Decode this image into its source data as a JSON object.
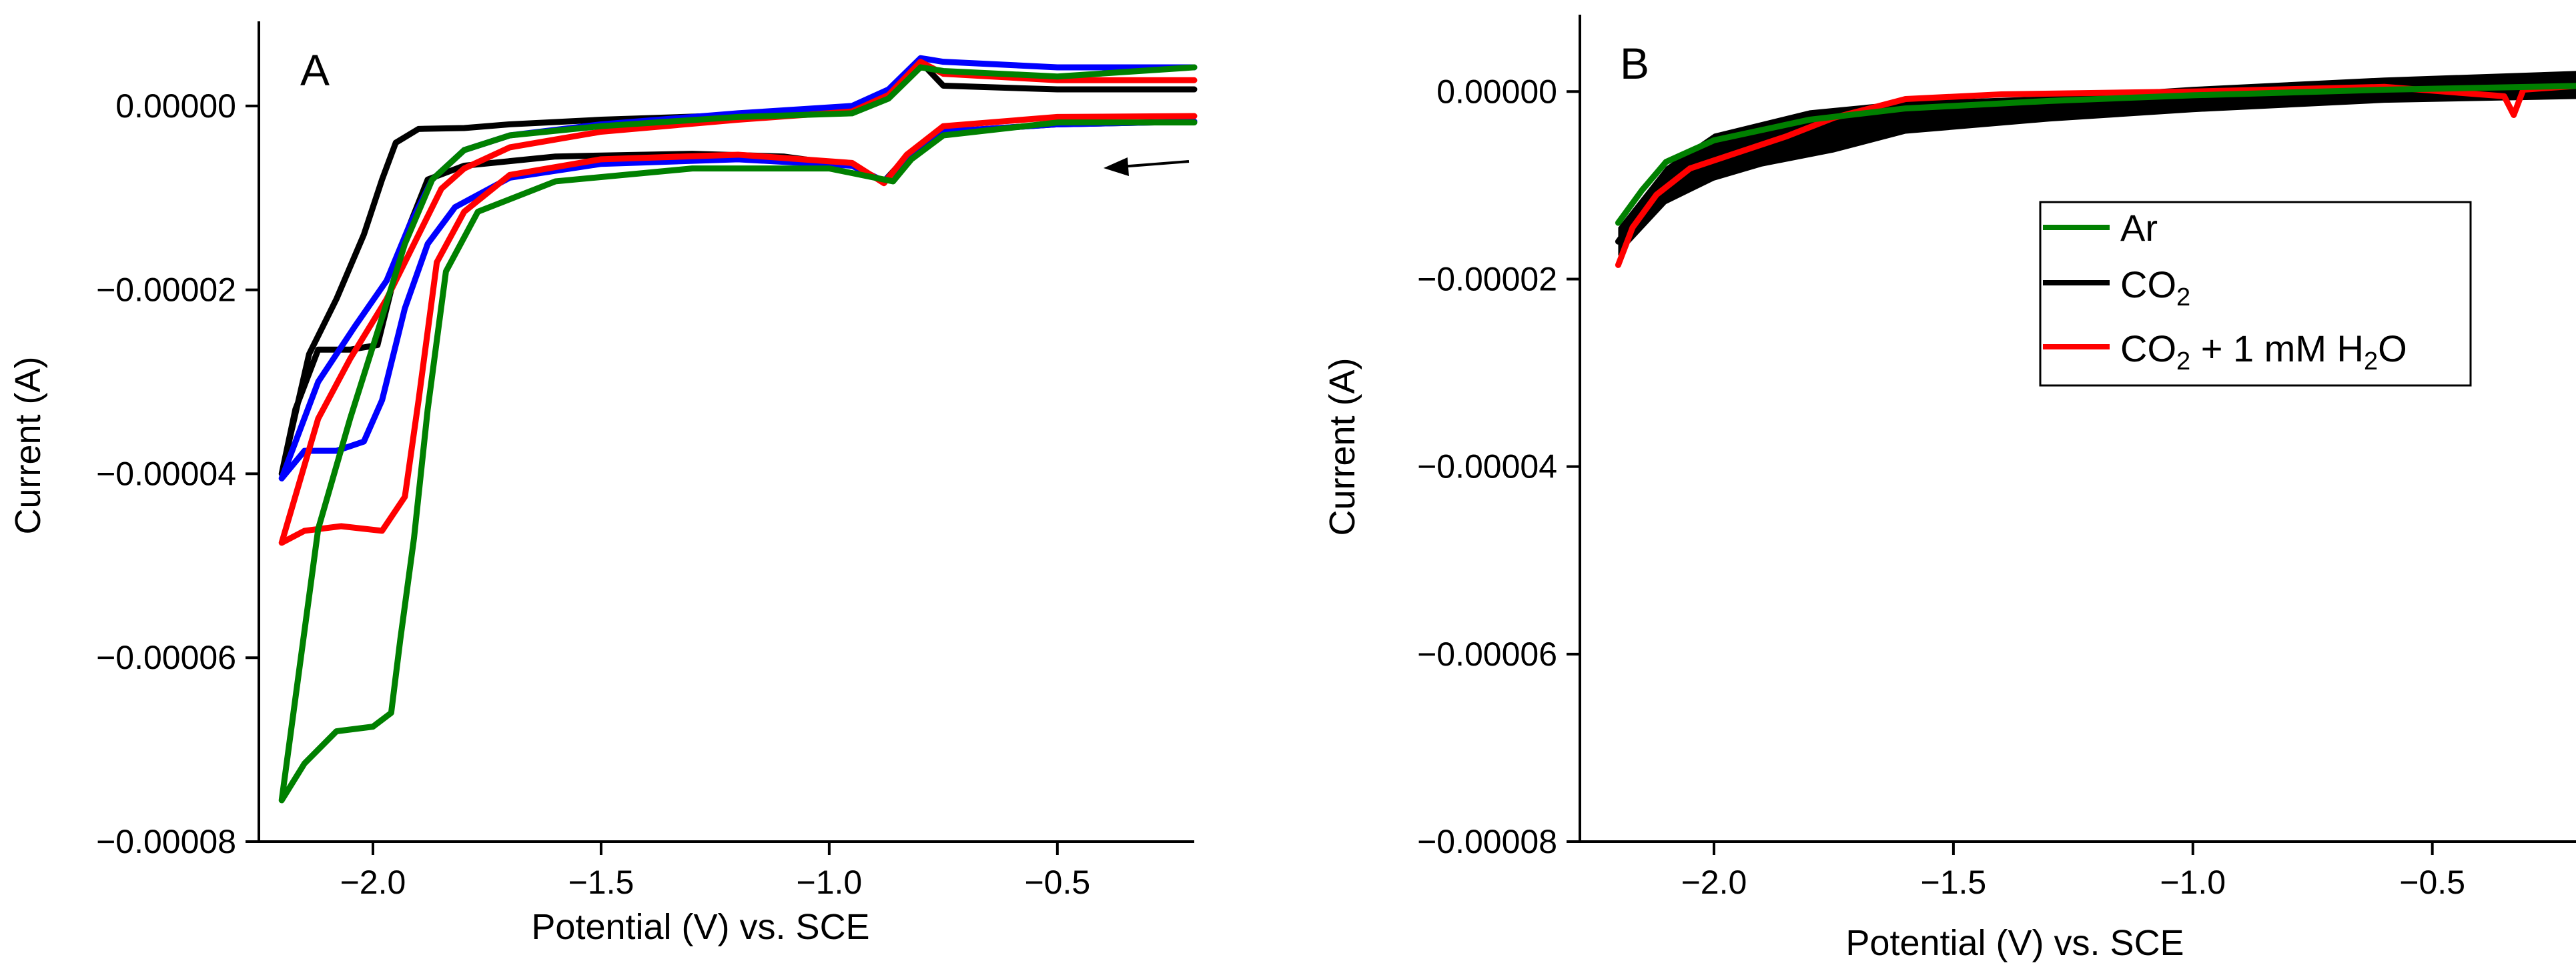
{
  "chart_data": [
    {
      "panel": "A",
      "type": "line",
      "title": "",
      "xlabel": "Potential (V) vs. SCE",
      "ylabel": "Current (A)",
      "xlim": [
        -2.25,
        -0.2
      ],
      "ylim": [
        -8e-05,
        9.2e-06
      ],
      "xticks": [
        -2.0,
        -1.5,
        -1.0,
        -0.5
      ],
      "xtick_labels": [
        "−2.0",
        "−1.5",
        "−1.0",
        "−0.5"
      ],
      "yticks": [
        0.0,
        -2e-05,
        -4e-05,
        -6e-05,
        -8e-05
      ],
      "ytick_labels": [
        "0.00000",
        "−0.00002",
        "−0.00004",
        "−0.00006",
        "−0.00008"
      ],
      "annotation": "scan direction arrow (pointing left, cathodic sweep)",
      "series": [
        {
          "name": "black",
          "color": "#000000",
          "points": [
            [
              -0.2,
              1.8e-06
            ],
            [
              -0.5,
              1.8e-06
            ],
            [
              -0.75,
              2.2e-06
            ],
            [
              -0.8,
              4.8e-06
            ],
            [
              -0.87,
              1.2e-06
            ],
            [
              -0.95,
              -5e-07
            ],
            [
              -1.2,
              -1e-06
            ],
            [
              -1.5,
              -1.5e-06
            ],
            [
              -1.7,
              -2e-06
            ],
            [
              -1.8,
              -2.4e-06
            ],
            [
              -1.9,
              -2.5e-06
            ],
            [
              -1.95,
              -4e-06
            ],
            [
              -1.98,
              -8e-06
            ],
            [
              -2.02,
              -1.4e-05
            ],
            [
              -2.08,
              -2.1e-05
            ],
            [
              -2.14,
              -2.7e-05
            ],
            [
              -2.2,
              -4e-05
            ],
            [
              -2.17,
              -3.3e-05
            ],
            [
              -2.12,
              -2.65e-05
            ],
            [
              -2.05,
              -2.65e-05
            ],
            [
              -1.99,
              -2.6e-05
            ],
            [
              -1.96,
              -2e-05
            ],
            [
              -1.92,
              -1.3e-05
            ],
            [
              -1.88,
              -8e-06
            ],
            [
              -1.8,
              -6.5e-06
            ],
            [
              -1.6,
              -5.5e-06
            ],
            [
              -1.3,
              -5.2e-06
            ],
            [
              -1.1,
              -5.5e-06
            ],
            [
              -0.95,
              -6.5e-06
            ],
            [
              -0.88,
              -8.2e-06
            ],
            [
              -0.83,
              -5.5e-06
            ],
            [
              -0.75,
              -2.8e-06
            ],
            [
              -0.5,
              -2e-06
            ],
            [
              -0.2,
              -1.7e-06
            ]
          ]
        },
        {
          "name": "blue",
          "color": "#0000ff",
          "points": [
            [
              -0.2,
              4.2e-06
            ],
            [
              -0.5,
              4.2e-06
            ],
            [
              -0.75,
              4.8e-06
            ],
            [
              -0.8,
              5.2e-06
            ],
            [
              -0.87,
              1.8e-06
            ],
            [
              -0.95,
              0.0
            ],
            [
              -1.2,
              -8e-07
            ],
            [
              -1.5,
              -2e-06
            ],
            [
              -1.7,
              -3.2e-06
            ],
            [
              -1.8,
              -4.8e-06
            ],
            [
              -1.87,
              -8e-06
            ],
            [
              -1.92,
              -1.3e-05
            ],
            [
              -1.97,
              -1.9e-05
            ],
            [
              -2.04,
              -2.4e-05
            ],
            [
              -2.12,
              -3e-05
            ],
            [
              -2.2,
              -4.05e-05
            ],
            [
              -2.15,
              -3.75e-05
            ],
            [
              -2.08,
              -3.75e-05
            ],
            [
              -2.02,
              -3.65e-05
            ],
            [
              -1.98,
              -3.2e-05
            ],
            [
              -1.93,
              -2.2e-05
            ],
            [
              -1.88,
              -1.5e-05
            ],
            [
              -1.82,
              -1.1e-05
            ],
            [
              -1.7,
              -7.8e-06
            ],
            [
              -1.5,
              -6.3e-06
            ],
            [
              -1.2,
              -5.8e-06
            ],
            [
              -0.95,
              -6.5e-06
            ],
            [
              -0.88,
              -8.2e-06
            ],
            [
              -0.83,
              -5.8e-06
            ],
            [
              -0.75,
              -2.8e-06
            ],
            [
              -0.5,
              -2e-06
            ],
            [
              -0.2,
              -1.7e-06
            ]
          ]
        },
        {
          "name": "red",
          "color": "#ff0000",
          "points": [
            [
              -0.2,
              2.8e-06
            ],
            [
              -0.5,
              2.8e-06
            ],
            [
              -0.75,
              3.5e-06
            ],
            [
              -0.8,
              4.8e-06
            ],
            [
              -0.87,
              1.2e-06
            ],
            [
              -0.95,
              -6e-07
            ],
            [
              -1.2,
              -1.5e-06
            ],
            [
              -1.5,
              -2.8e-06
            ],
            [
              -1.7,
              -4.5e-06
            ],
            [
              -1.8,
              -6.8e-06
            ],
            [
              -1.85,
              -9e-06
            ],
            [
              -1.9,
              -1.4e-05
            ],
            [
              -1.97,
              -2.1e-05
            ],
            [
              -2.05,
              -2.75e-05
            ],
            [
              -2.12,
              -3.4e-05
            ],
            [
              -2.2,
              -4.75e-05
            ],
            [
              -2.15,
              -4.62e-05
            ],
            [
              -2.07,
              -4.57e-05
            ],
            [
              -1.98,
              -4.62e-05
            ],
            [
              -1.93,
              -4.25e-05
            ],
            [
              -1.9,
              -3.2e-05
            ],
            [
              -1.86,
              -1.7e-05
            ],
            [
              -1.8,
              -1.15e-05
            ],
            [
              -1.7,
              -7.5e-06
            ],
            [
              -1.5,
              -5.8e-06
            ],
            [
              -1.2,
              -5.3e-06
            ],
            [
              -0.95,
              -6.2e-06
            ],
            [
              -0.88,
              -8.4e-06
            ],
            [
              -0.83,
              -5.3e-06
            ],
            [
              -0.75,
              -2.2e-06
            ],
            [
              -0.5,
              -1.2e-06
            ],
            [
              -0.2,
              -1.1e-06
            ]
          ]
        },
        {
          "name": "green",
          "color": "#008000",
          "points": [
            [
              -0.2,
              4.2e-06
            ],
            [
              -0.5,
              3.2e-06
            ],
            [
              -0.75,
              3.8e-06
            ],
            [
              -0.8,
              4.2e-06
            ],
            [
              -0.87,
              8e-07
            ],
            [
              -0.95,
              -8e-07
            ],
            [
              -1.2,
              -1.2e-06
            ],
            [
              -1.5,
              -2.2e-06
            ],
            [
              -1.7,
              -3.2e-06
            ],
            [
              -1.8,
              -4.8e-06
            ],
            [
              -1.87,
              -8e-06
            ],
            [
              -1.93,
              -1.5e-05
            ],
            [
              -1.98,
              -2.3e-05
            ],
            [
              -2.05,
              -3.4e-05
            ],
            [
              -2.12,
              -4.6e-05
            ],
            [
              -2.2,
              -7.55e-05
            ],
            [
              -2.15,
              -7.15e-05
            ],
            [
              -2.08,
              -6.8e-05
            ],
            [
              -2.0,
              -6.75e-05
            ],
            [
              -1.96,
              -6.6e-05
            ],
            [
              -1.94,
              -5.8e-05
            ],
            [
              -1.91,
              -4.7e-05
            ],
            [
              -1.88,
              -3.3e-05
            ],
            [
              -1.84,
              -1.8e-05
            ],
            [
              -1.77,
              -1.15e-05
            ],
            [
              -1.6,
              -8.2e-06
            ],
            [
              -1.3,
              -6.8e-06
            ],
            [
              -1.0,
              -6.8e-06
            ],
            [
              -0.9,
              -7.8e-06
            ],
            [
              -0.86,
              -8.2e-06
            ],
            [
              -0.82,
              -5.8e-06
            ],
            [
              -0.75,
              -3.2e-06
            ],
            [
              -0.5,
              -1.8e-06
            ],
            [
              -0.2,
              -1.8e-06
            ]
          ]
        }
      ]
    },
    {
      "panel": "B",
      "type": "line",
      "title": "",
      "xlabel": "Potential (V) vs. SCE",
      "ylabel": "Current (A)",
      "xlim": [
        -2.28,
        -0.2
      ],
      "ylim": [
        -8e-05,
        8.2e-06
      ],
      "xticks": [
        -2.0,
        -1.5,
        -1.0,
        -0.5
      ],
      "xtick_labels": [
        "−2.0",
        "−1.5",
        "−1.0",
        "−0.5"
      ],
      "yticks": [
        0.0,
        -2e-05,
        -4e-05,
        -6e-05,
        -8e-05
      ],
      "ytick_labels": [
        "0.00000",
        "−0.00002",
        "−0.00004",
        "−0.00006",
        "−0.00008"
      ],
      "legend": {
        "placement": "right, below top",
        "entries": [
          {
            "label": "Ar",
            "color": "#008000"
          },
          {
            "label": "CO2",
            "color": "#000000"
          },
          {
            "label": "CO2 + 1 mM H2O",
            "color": "#ff0000"
          }
        ]
      },
      "series": [
        {
          "name": "CO2",
          "color": "#000000",
          "points": [
            [
              -2.2,
              -1.6e-05
            ],
            [
              -2.15,
              -1.25e-05
            ],
            [
              -2.1,
              -9.5e-06
            ],
            [
              -2.0,
              -6.8e-06
            ],
            [
              -1.8,
              -4.2e-06
            ],
            [
              -1.6,
              -2.8e-06
            ],
            [
              -1.3,
              -1.8e-06
            ],
            [
              -1.0,
              -8e-07
            ],
            [
              -0.6,
              2e-07
            ],
            [
              -0.2,
              6e-07
            ]
          ],
          "band_lower": [
            [
              -2.2,
              -1.75e-05
            ],
            [
              -2.1,
              -1.2e-05
            ],
            [
              -2.0,
              -9.5e-06
            ],
            [
              -1.9,
              -8e-06
            ],
            [
              -1.75,
              -6.5e-06
            ],
            [
              -1.6,
              -4.5e-06
            ],
            [
              -1.3,
              -3.2e-06
            ],
            [
              -1.0,
              -2.2e-06
            ],
            [
              -0.6,
              -1.2e-06
            ],
            [
              -0.2,
              -8e-07
            ]
          ],
          "band_upper": [
            [
              -2.2,
              -1.45e-05
            ],
            [
              -2.1,
              -8e-06
            ],
            [
              -2.0,
              -4.5e-06
            ],
            [
              -1.8,
              -2e-06
            ],
            [
              -1.6,
              -1e-06
            ],
            [
              -1.3,
              -5e-07
            ],
            [
              -1.0,
              5e-07
            ],
            [
              -0.6,
              1.5e-06
            ],
            [
              -0.2,
              2.2e-06
            ]
          ]
        },
        {
          "name": "CO2 + 1 mM H2O",
          "color": "#ff0000",
          "points": [
            [
              -2.2,
              -1.85e-05
            ],
            [
              -2.17,
              -1.45e-05
            ],
            [
              -2.12,
              -1.1e-05
            ],
            [
              -2.05,
              -8.2e-06
            ],
            [
              -1.95,
              -6.5e-06
            ],
            [
              -1.85,
              -4.8e-06
            ],
            [
              -1.75,
              -2.8e-06
            ],
            [
              -1.6,
              -8e-07
            ],
            [
              -1.4,
              -3e-07
            ],
            [
              -1.0,
              0.0
            ],
            [
              -0.6,
              5e-07
            ],
            [
              -0.35,
              -5e-07
            ],
            [
              -0.33,
              -2.5e-06
            ],
            [
              -0.31,
              2e-07
            ],
            [
              -0.2,
              6e-07
            ]
          ]
        },
        {
          "name": "Ar",
          "color": "#008000",
          "points": [
            [
              -2.2,
              -1.4e-05
            ],
            [
              -2.15,
              -1.05e-05
            ],
            [
              -2.1,
              -7.5e-06
            ],
            [
              -2.0,
              -5.2e-06
            ],
            [
              -1.8,
              -3e-06
            ],
            [
              -1.6,
              -1.8e-06
            ],
            [
              -1.3,
              -1e-06
            ],
            [
              -1.0,
              -4e-07
            ],
            [
              -0.6,
              2e-07
            ],
            [
              -0.2,
              6e-07
            ]
          ]
        }
      ]
    }
  ]
}
